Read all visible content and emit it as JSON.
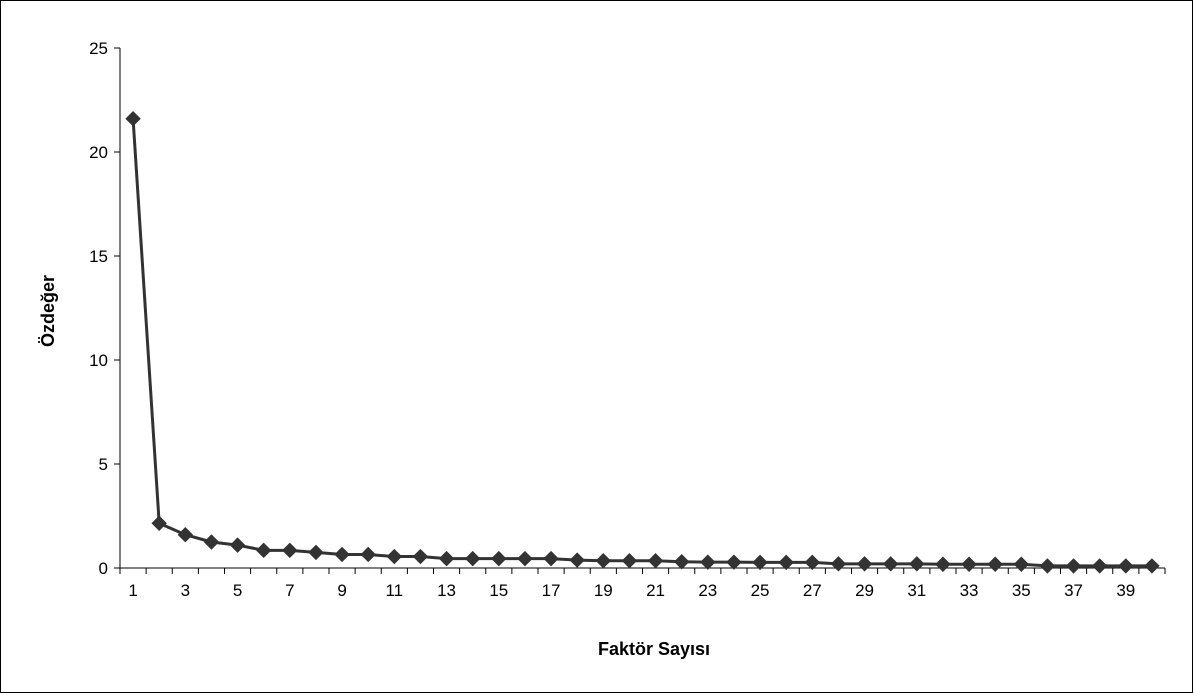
{
  "chart_data": {
    "type": "line",
    "title": "",
    "xlabel": "Faktör Sayısı",
    "ylabel": "Özdeğer",
    "ylim": [
      0,
      25
    ],
    "yticks": [
      0,
      5,
      10,
      15,
      20,
      25
    ],
    "x": [
      1,
      2,
      3,
      4,
      5,
      6,
      7,
      8,
      9,
      10,
      11,
      12,
      13,
      14,
      15,
      16,
      17,
      18,
      19,
      20,
      21,
      22,
      23,
      24,
      25,
      26,
      27,
      28,
      29,
      30,
      31,
      32,
      33,
      34,
      35,
      36,
      37,
      38,
      39,
      40
    ],
    "xtick_labels": [
      "1",
      "3",
      "5",
      "7",
      "9",
      "11",
      "13",
      "15",
      "17",
      "19",
      "21",
      "23",
      "25",
      "27",
      "29",
      "31",
      "33",
      "35",
      "37",
      "39"
    ],
    "series": [
      {
        "values": [
          21.6,
          2.15,
          1.6,
          1.25,
          1.1,
          0.85,
          0.85,
          0.75,
          0.65,
          0.65,
          0.55,
          0.55,
          0.45,
          0.45,
          0.45,
          0.45,
          0.45,
          0.38,
          0.35,
          0.35,
          0.35,
          0.3,
          0.28,
          0.28,
          0.27,
          0.27,
          0.27,
          0.2,
          0.2,
          0.2,
          0.2,
          0.18,
          0.18,
          0.18,
          0.18,
          0.1,
          0.1,
          0.1,
          0.1,
          0.1
        ],
        "color": "#333333",
        "marker": "diamond"
      }
    ],
    "grid": false,
    "legend": "none"
  }
}
